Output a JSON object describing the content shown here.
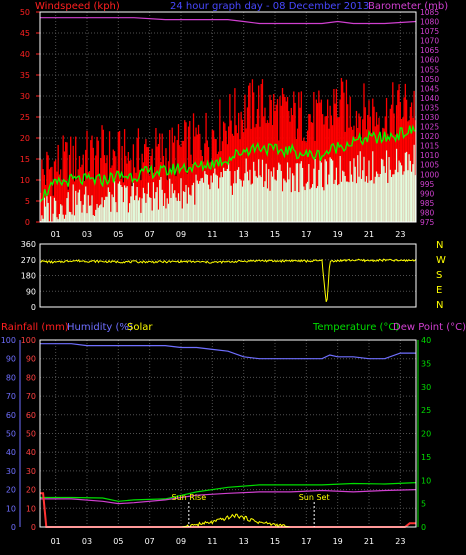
{
  "header": {
    "windspeed_label": "Windspeed (kph)",
    "graph_title": "24 hour graph day - 08 December 2013",
    "barometer_label": "Barometer (mb)"
  },
  "bottom_header": {
    "rainfall_label": "Rainfall (mm)",
    "humidity_label": "Humidity (%)",
    "solar_label": "Solar",
    "temperature_label": "Temperature (°C)",
    "dewpoint_label": "Dew Point (°C)"
  },
  "colors": {
    "wind_gust": "#ff0000",
    "wind_avg": "#00ff00",
    "wind_speed": "#e0ffe0",
    "barometer": "#d040d0",
    "direction": "#ffff00",
    "rain": "#ff3333",
    "humidity": "#6f6fff",
    "solar": "#ffff00",
    "temperature": "#00dd00",
    "dewpoint": "#d040d0",
    "grid": "#505050",
    "frame": "#ffffff"
  },
  "chart_data": [
    {
      "type": "line",
      "name": "wind-barometer",
      "title": "24 hour graph day - 08 December 2013",
      "x_ticks": [
        "01",
        "03",
        "05",
        "07",
        "09",
        "11",
        "13",
        "15",
        "17",
        "19",
        "21",
        "23"
      ],
      "xlim": [
        0,
        24
      ],
      "left_axis": {
        "label": "Windspeed (kph)",
        "range": [
          0,
          50
        ],
        "ticks": [
          0,
          5,
          10,
          15,
          20,
          25,
          30,
          35,
          40,
          45,
          50
        ]
      },
      "right_axis": {
        "label": "Barometer (mb)",
        "range": [
          975,
          1085
        ],
        "ticks": [
          975,
          980,
          985,
          990,
          995,
          1000,
          1005,
          1010,
          1015,
          1020,
          1025,
          1030,
          1035,
          1040,
          1045,
          1050,
          1055,
          1060,
          1065,
          1070,
          1075,
          1080,
          1085
        ]
      },
      "series": [
        {
          "key": "gust",
          "type": "bar",
          "hours": [
            0,
            1,
            2,
            3,
            4,
            5,
            6,
            7,
            8,
            9,
            10,
            11,
            12,
            13,
            14,
            15,
            16,
            17,
            18,
            19,
            20,
            21,
            22,
            23,
            24
          ],
          "values": [
            12,
            14,
            15,
            16,
            17,
            16,
            16,
            17,
            17,
            18,
            20,
            22,
            25,
            27,
            29,
            27,
            26,
            26,
            25,
            29,
            27,
            27,
            26,
            28,
            29
          ]
        },
        {
          "key": "average",
          "hours": [
            0,
            1,
            2,
            3,
            4,
            5,
            6,
            7,
            8,
            9,
            10,
            11,
            12,
            13,
            14,
            15,
            16,
            17,
            18,
            19,
            20,
            21,
            22,
            23,
            24
          ],
          "values": [
            6,
            9,
            10,
            10,
            10,
            11,
            11,
            12,
            12,
            13,
            13,
            14,
            15,
            17,
            18,
            17,
            17,
            16,
            16,
            18,
            19,
            20,
            20,
            21,
            22
          ]
        },
        {
          "key": "speed",
          "hours": [
            0,
            1,
            2,
            3,
            4,
            5,
            6,
            7,
            8,
            9,
            10,
            11,
            12,
            13,
            14,
            15,
            16,
            17,
            18,
            19,
            20,
            21,
            22,
            23,
            24
          ],
          "values": [
            2,
            4,
            5,
            5,
            5,
            6,
            6,
            6,
            7,
            7,
            8,
            9,
            10,
            11,
            12,
            11,
            11,
            11,
            11,
            12,
            13,
            13,
            13,
            14,
            15
          ]
        },
        {
          "key": "barometer",
          "axis": "right",
          "hours": [
            0,
            2,
            4,
            6,
            8,
            10,
            12,
            13,
            14,
            16,
            18,
            19,
            20,
            22,
            24
          ],
          "values": [
            1082,
            1082,
            1082,
            1082,
            1081,
            1081,
            1081,
            1080,
            1079,
            1079,
            1079,
            1080,
            1079,
            1079,
            1080
          ]
        }
      ]
    },
    {
      "type": "line",
      "name": "wind-direction",
      "left_axis": {
        "range": [
          0,
          360
        ],
        "ticks": [
          0,
          90,
          180,
          270,
          360
        ]
      },
      "right_labels": [
        "N",
        "W",
        "S",
        "E",
        "N"
      ],
      "series": [
        {
          "key": "direction",
          "hours": [
            0,
            1,
            2,
            3,
            4,
            5,
            6,
            7,
            8,
            9,
            10,
            11,
            12,
            13,
            14,
            15,
            16,
            17,
            18,
            18.3,
            18.5,
            19,
            20,
            21,
            22,
            23,
            24
          ],
          "values": [
            262,
            255,
            265,
            262,
            260,
            258,
            258,
            258,
            258,
            260,
            258,
            255,
            258,
            262,
            265,
            262,
            265,
            262,
            265,
            0,
            262,
            265,
            268,
            265,
            268,
            265,
            268
          ]
        }
      ]
    },
    {
      "type": "line",
      "name": "rain-humidity-temperature",
      "x_ticks": [
        "01",
        "03",
        "05",
        "07",
        "09",
        "11",
        "13",
        "15",
        "17",
        "19",
        "21",
        "23"
      ],
      "xlim": [
        0,
        24
      ],
      "left_axis": {
        "label": "Rainfall (mm) / Humidity (%)",
        "range": [
          0,
          100
        ],
        "ticks": [
          0,
          10,
          20,
          30,
          40,
          50,
          60,
          70,
          80,
          90,
          100
        ]
      },
      "right_axis": {
        "label": "Temperature (°C)",
        "range": [
          0,
          40
        ],
        "ticks": [
          0,
          5,
          10,
          15,
          20,
          25,
          30,
          35,
          40
        ]
      },
      "annotations": [
        {
          "hour": 9.5,
          "text": "Sun Rise"
        },
        {
          "hour": 17.5,
          "text": "Sun Set"
        }
      ],
      "series": [
        {
          "key": "humidity",
          "axis": "left",
          "hours": [
            0,
            1,
            2,
            3,
            4,
            5,
            6,
            7,
            8,
            9,
            10,
            11,
            12,
            13,
            14,
            15,
            16,
            17,
            18,
            18.5,
            19,
            20,
            21,
            22,
            23,
            24
          ],
          "values": [
            98,
            98,
            98,
            97,
            97,
            97,
            97,
            97,
            97,
            96,
            96,
            95,
            94,
            91,
            90,
            90,
            90,
            90,
            90,
            92,
            91,
            91,
            90,
            90,
            93,
            93
          ]
        },
        {
          "key": "rainfall",
          "axis": "left",
          "hours": [
            0,
            0.2,
            0.4,
            1,
            23.3,
            23.6,
            24
          ],
          "values": [
            18,
            18,
            0,
            0,
            0,
            2,
            2
          ]
        },
        {
          "key": "temperature",
          "axis": "right",
          "hours": [
            0,
            2,
            4,
            5,
            6,
            8,
            10,
            12,
            14,
            16,
            18,
            20,
            22,
            24
          ],
          "values": [
            6.3,
            6.3,
            6.2,
            5.5,
            5.8,
            6,
            7.5,
            8.5,
            9,
            9,
            9,
            9.3,
            9.2,
            9.5
          ]
        },
        {
          "key": "dewpoint",
          "axis": "right",
          "hours": [
            0,
            2,
            4,
            5,
            6,
            8,
            10,
            12,
            14,
            16,
            18,
            20,
            22,
            24
          ],
          "values": [
            6,
            6,
            5.5,
            5,
            5.2,
            5.8,
            6.8,
            7.2,
            7.5,
            7.5,
            7.8,
            7.5,
            7.8,
            8
          ]
        },
        {
          "key": "solar",
          "axis": "right",
          "hours": [
            8,
            9,
            10,
            11,
            11.5,
            12,
            12.5,
            13,
            13.5,
            14,
            15,
            16,
            17
          ],
          "values": [
            0,
            0,
            0.5,
            1,
            1.5,
            2,
            2.5,
            2,
            1.5,
            1,
            0.5,
            0,
            0
          ]
        }
      ]
    }
  ]
}
